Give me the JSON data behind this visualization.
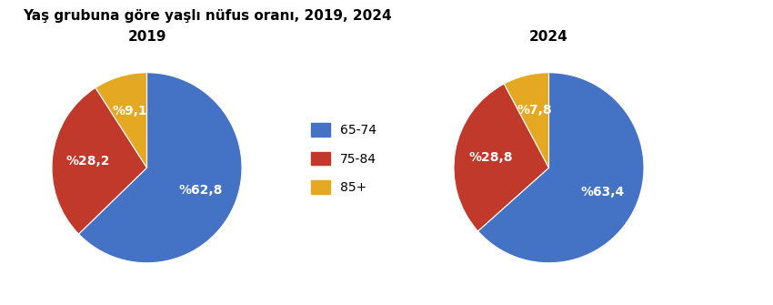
{
  "title": "Yaş grubuna göre yaşlı nüfus oranı, 2019, 2024",
  "title_fontsize": 11,
  "title_fontweight": "bold",
  "pie2019": {
    "label": "2019",
    "values": [
      62.8,
      28.2,
      9.1
    ],
    "labels_display": [
      "%62,8",
      "%28,2",
      "%9,1"
    ],
    "colors": [
      "#4472C4",
      "#C0392B",
      "#E5A823"
    ]
  },
  "pie2024": {
    "label": "2024",
    "values": [
      63.4,
      28.8,
      7.8
    ],
    "labels_display": [
      "%63,4",
      "%28,8",
      "%7,8"
    ],
    "colors": [
      "#4472C4",
      "#C0392B",
      "#E5A823"
    ]
  },
  "legend_labels": [
    "65-74",
    "75-84",
    "85+"
  ],
  "legend_colors": [
    "#4472C4",
    "#C0392B",
    "#E5A823"
  ],
  "background_color": "#ffffff",
  "label_fontsize": 10,
  "label_fontweight": "bold",
  "subtitle_fontsize": 11,
  "subtitle_fontweight": "bold"
}
